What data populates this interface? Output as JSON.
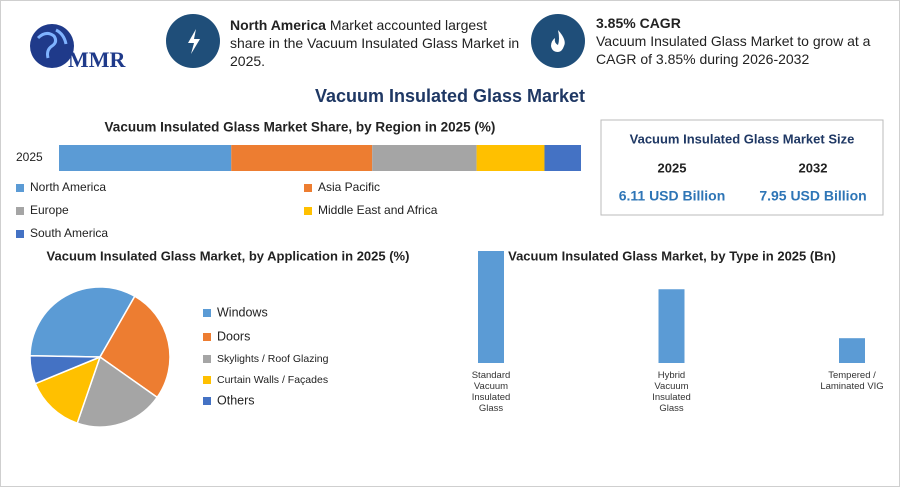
{
  "header": {
    "logo": "MMR",
    "highlight1": {
      "bold": "North America",
      "text": "Market accounted largest share in the Vacuum Insulated Glass Market in 2025."
    },
    "highlight2": {
      "title": "3.85% CAGR",
      "text": "Vacuum Insulated Glass Market to grow at a CAGR of 3.85% during 2026-2032"
    },
    "title": "Vacuum Insulated Glass Market"
  },
  "market_size": {
    "title": "Vacuum Insulated Glass Market Size",
    "headers": [
      "2025",
      "2032"
    ],
    "values": [
      "6.11 USD Billion",
      "7.95 USD Billion"
    ]
  },
  "chart_data": [
    {
      "type": "stacked_bar",
      "title": "Vacuum Insulated Glass Market Share, by Region in 2025 (%)",
      "categories": [
        "2025"
      ],
      "xlim": [
        0,
        100
      ],
      "series": [
        {
          "name": "North America",
          "color": "#5b9bd5",
          "values": [
            33
          ]
        },
        {
          "name": "Asia Pacific",
          "color": "#ed7d31",
          "values": [
            27
          ]
        },
        {
          "name": "Europe",
          "color": "#a5a5a5",
          "values": [
            20
          ]
        },
        {
          "name": "Middle East and Africa",
          "color": "#ffc000",
          "values": [
            13
          ]
        },
        {
          "name": "South America",
          "color": "#4472c4",
          "values": [
            7
          ]
        }
      ]
    },
    {
      "type": "pie",
      "title": "Vacuum Insulated Glass Market, by Application in 2025 (%)",
      "categories": [
        "Windows",
        "Doors",
        "Skylights / Roof Glazing",
        "Curtain Walls / Façades",
        "Others"
      ],
      "values": [
        33,
        26.5,
        20.5,
        13.5,
        6.5
      ],
      "colors": [
        "#5b9bd5",
        "#ed7d31",
        "#a5a5a5",
        "#ffc000",
        "#4472c4"
      ]
    },
    {
      "type": "bar",
      "title": "Vacuum Insulated Glass Market, by Type in 2025 (Bn)",
      "categories": [
        "Standard Vacuum Insulated Glass",
        "Hybrid Vacuum Insulated Glass",
        "Tempered / Laminated VIG"
      ],
      "values": [
        3.25,
        2.14,
        0.72
      ],
      "color": "#5b9bd5"
    }
  ]
}
